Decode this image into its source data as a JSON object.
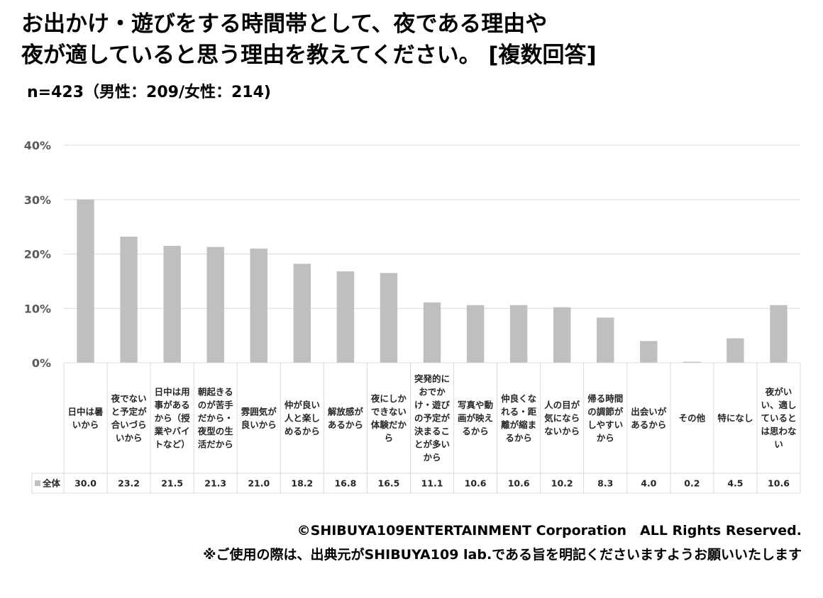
{
  "title": {
    "line1": "お出かけ・遊びをする時間帯として、夜である理由や",
    "line2": "夜が適していると思う理由を教えてください。 [複数回答]"
  },
  "subtitle": "n=423（男性：209/女性：214)",
  "footer": {
    "copyright": "©SHIBUYA109ENTERTAINMENT Corporation　ALL Rights Reserved.",
    "note": "※ご使用の際は、出典元がSHIBUYA109 lab.である旨を明記くださいますようお願いいたします"
  },
  "chart_data": {
    "type": "bar",
    "categories": [
      [
        "日中は暑",
        "いから"
      ],
      [
        "夜でない",
        "と予定が",
        "合いづら",
        "いから"
      ],
      [
        "日中は用",
        "事がある",
        "から（授",
        "業やバイ",
        "トなど）"
      ],
      [
        "朝起きる",
        "のが苦手",
        "だから・",
        "夜型の生",
        "活だから"
      ],
      [
        "雰囲気が",
        "良いから"
      ],
      [
        "仲が良い",
        "人と楽し",
        "めるから"
      ],
      [
        "解放感が",
        "あるから"
      ],
      [
        "夜にしか",
        "できない",
        "体験だか",
        "ら"
      ],
      [
        "突発的に",
        "おでか",
        "け・遊び",
        "の予定が",
        "決まるこ",
        "とが多い",
        "から"
      ],
      [
        "写真や動",
        "画が映え",
        "るから"
      ],
      [
        "仲良くな",
        "れる・距",
        "離が縮ま",
        "るから"
      ],
      [
        "人の目が",
        "気になら",
        "ないから"
      ],
      [
        "帰る時間",
        "の調節が",
        "しやすい",
        "から"
      ],
      [
        "出会いが",
        "あるから"
      ],
      [
        "その他"
      ],
      [
        "特になし"
      ],
      [
        "夜がい",
        "い、適し",
        "ていると",
        "は思わな",
        "い"
      ]
    ],
    "series": [
      {
        "name": "全体",
        "values": [
          30.0,
          23.2,
          21.5,
          21.3,
          21.0,
          18.2,
          16.8,
          16.5,
          11.1,
          10.6,
          10.6,
          10.2,
          8.3,
          4.0,
          0.2,
          4.5,
          10.6
        ],
        "value_labels": [
          "30.0",
          "23.2",
          "21.5",
          "21.3",
          "21.0",
          "18.2",
          "16.8",
          "16.5",
          "11.1",
          "10.6",
          "10.6",
          "10.2",
          "8.3",
          "4.0",
          "0.2",
          "4.5",
          "10.6"
        ]
      }
    ],
    "ylim": [
      0,
      40
    ],
    "yticks": [
      0,
      10,
      20,
      30,
      40
    ],
    "ytick_labels": [
      "0%",
      "10%",
      "20%",
      "30%",
      "40%"
    ],
    "grid": true,
    "legend": "data-table-left",
    "colors": {
      "bar": "#bfbfbf",
      "grid": "#d9d9d9",
      "border": "#d9d9d9",
      "axis_text": "#595959"
    }
  }
}
